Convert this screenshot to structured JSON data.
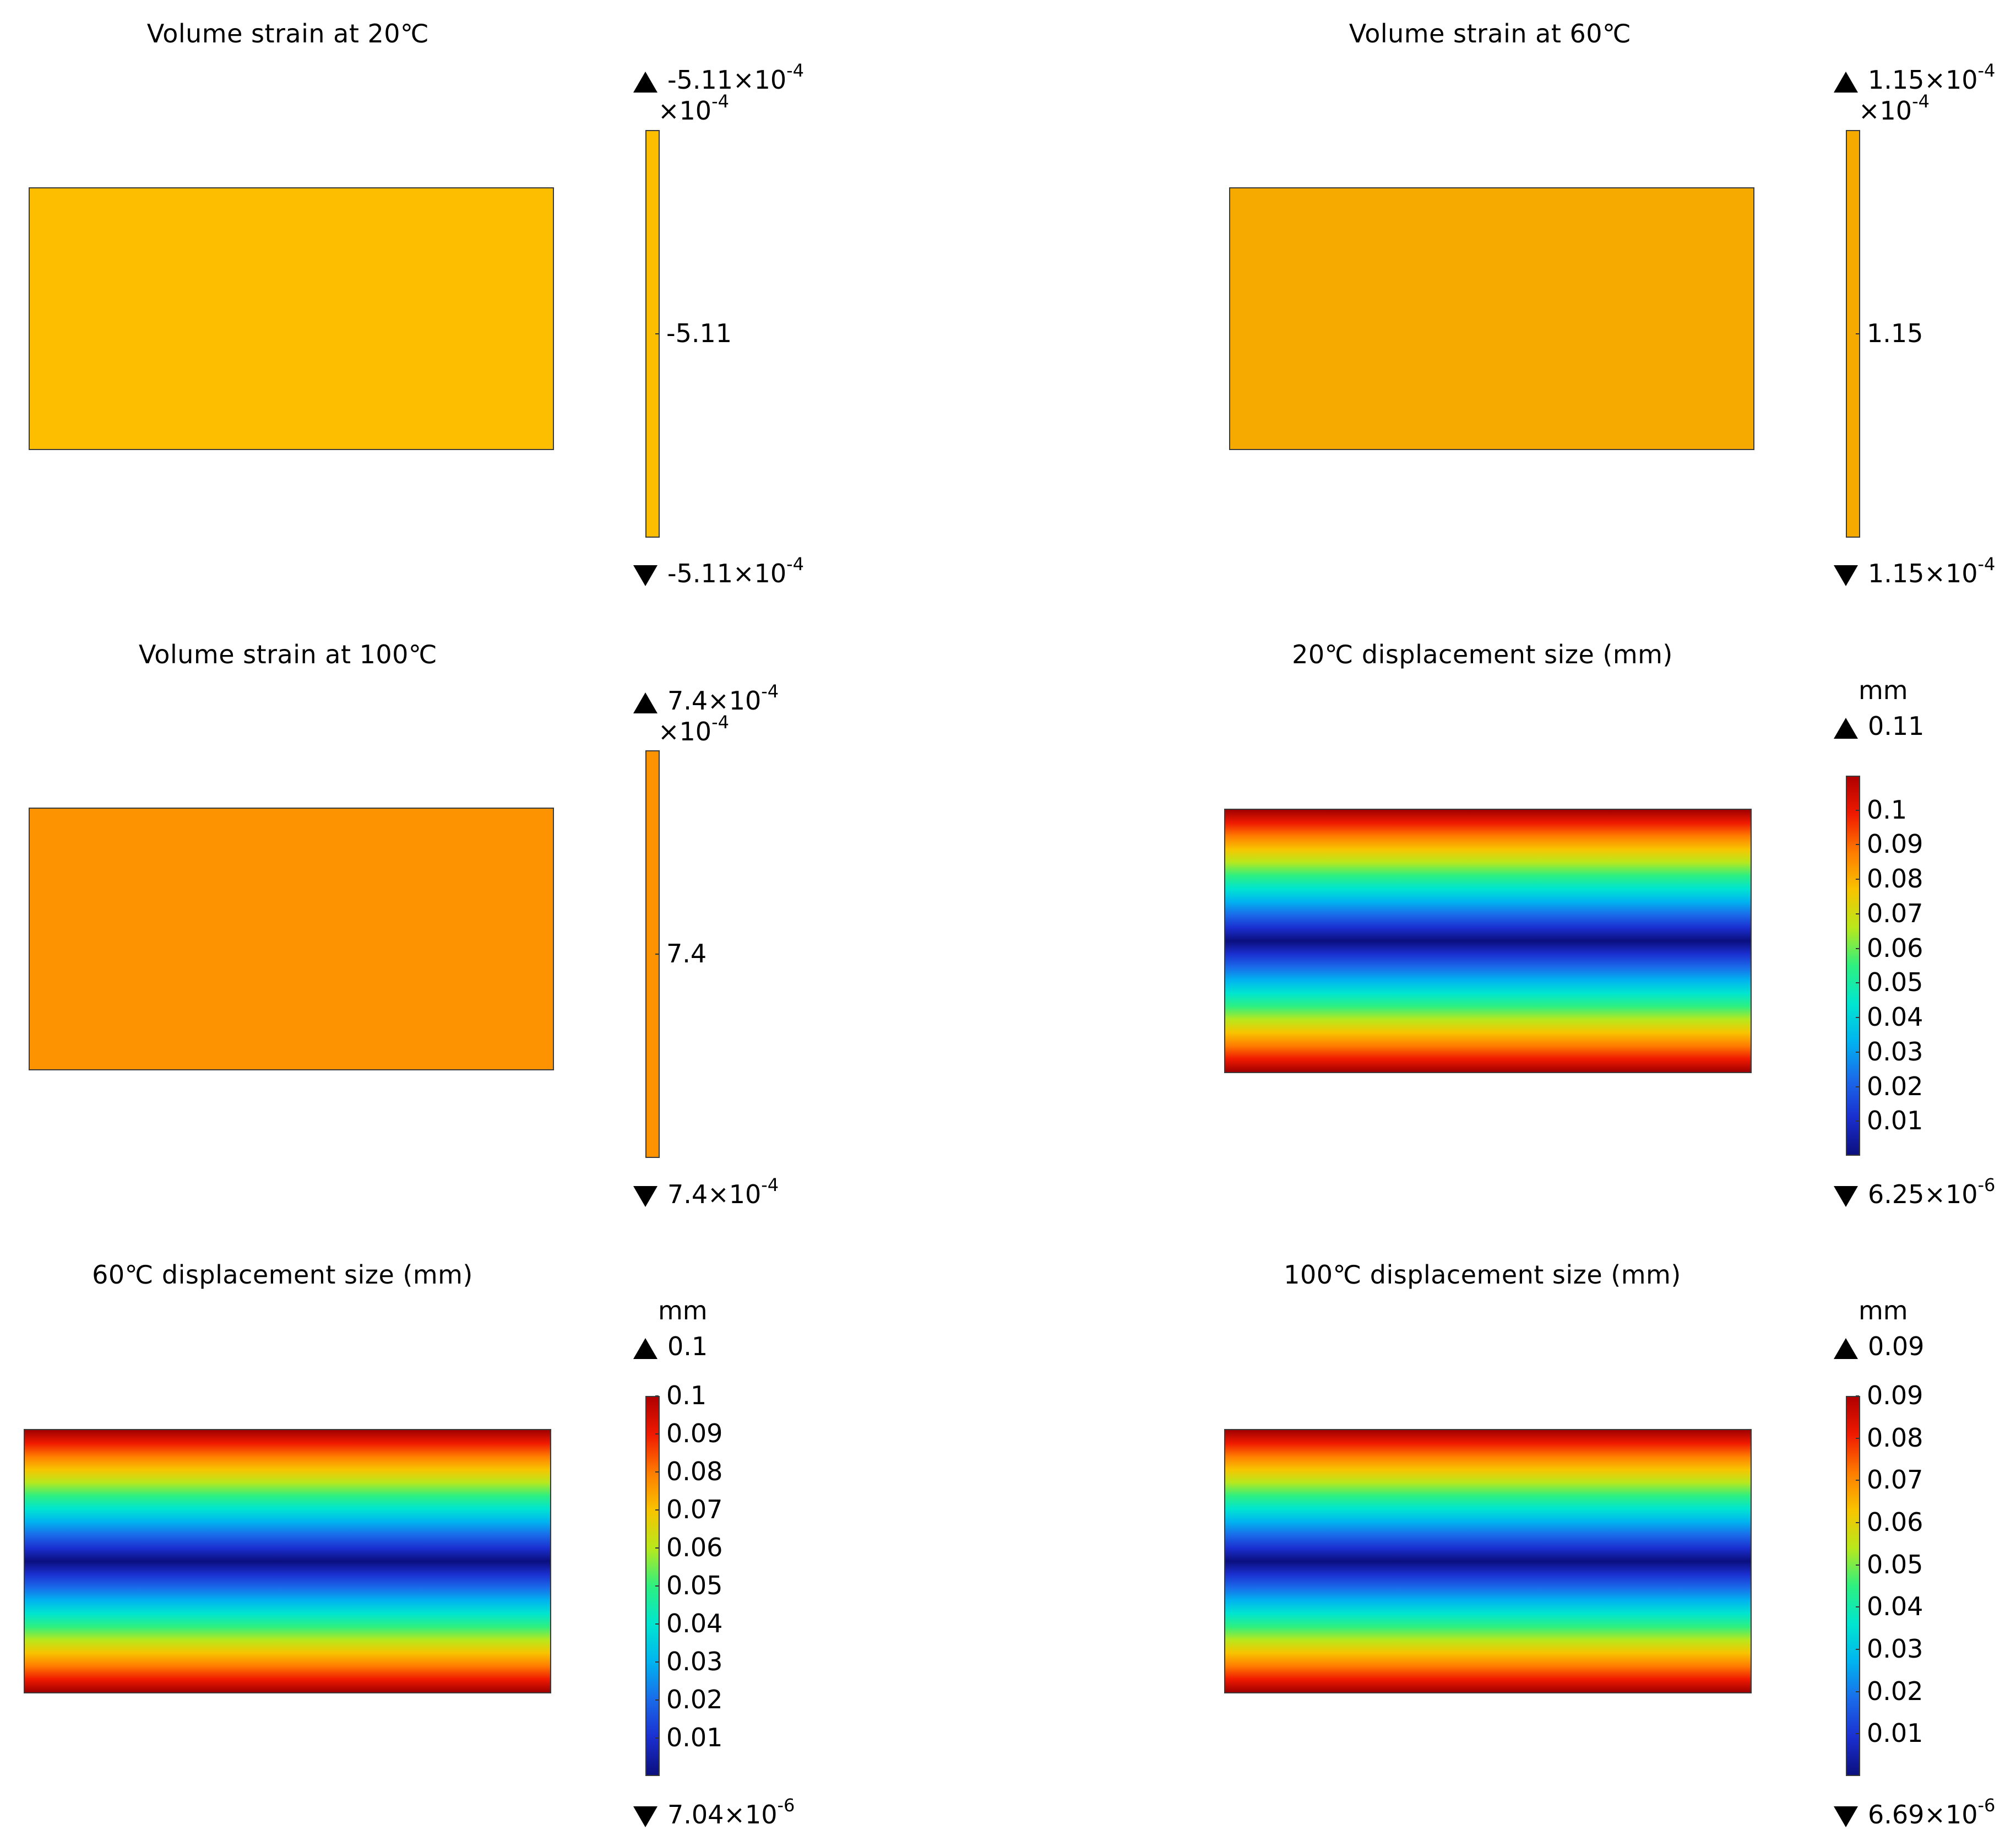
{
  "chart_data": [
    {
      "type": "heatmap",
      "title": "Volume strain at 20℃",
      "field": "uniform",
      "color": "#FDBE00",
      "max_label": {
        "mantissa": "-5.11×10",
        "exp": "-4"
      },
      "min_label": {
        "mantissa": "-5.11×10",
        "exp": "-4"
      },
      "multiplier": {
        "mantissa": "×10",
        "exp": "-4"
      },
      "ticks": [
        {
          "value": -5.11,
          "label": "-5.11"
        }
      ],
      "range": [
        -5.11,
        -5.11
      ],
      "unit": ""
    },
    {
      "type": "heatmap",
      "title": "Volume strain at 60℃",
      "field": "uniform",
      "color": "#F6AA00",
      "max_label": {
        "mantissa": "1.15×10",
        "exp": "-4"
      },
      "min_label": {
        "mantissa": "1.15×10",
        "exp": "-4"
      },
      "multiplier": {
        "mantissa": "×10",
        "exp": "-4"
      },
      "ticks": [
        {
          "value": 1.15,
          "label": "1.15"
        }
      ],
      "range": [
        1.15,
        1.15
      ],
      "unit": ""
    },
    {
      "type": "heatmap",
      "title": "Volume strain at 100℃",
      "field": "uniform",
      "color": "#FD9300",
      "max_label": {
        "mantissa": "7.4×10",
        "exp": "-4"
      },
      "min_label": {
        "mantissa": "7.4×10",
        "exp": "-4"
      },
      "multiplier": {
        "mantissa": "×10",
        "exp": "-4"
      },
      "ticks": [
        {
          "value": 7.4,
          "label": "7.4"
        }
      ],
      "range": [
        7.4,
        7.4
      ],
      "unit": ""
    },
    {
      "type": "heatmap",
      "title": "20℃ displacement size (mm)",
      "field": "displacement",
      "max_label": {
        "mantissa": "0.11",
        "exp": ""
      },
      "min_label": {
        "mantissa": "6.25×10",
        "exp": "-6"
      },
      "multiplier": null,
      "ticks": [
        {
          "value": 0.1,
          "label": "0.1"
        },
        {
          "value": 0.09,
          "label": "0.09"
        },
        {
          "value": 0.08,
          "label": "0.08"
        },
        {
          "value": 0.07,
          "label": "0.07"
        },
        {
          "value": 0.06,
          "label": "0.06"
        },
        {
          "value": 0.05,
          "label": "0.05"
        },
        {
          "value": 0.04,
          "label": "0.04"
        },
        {
          "value": 0.03,
          "label": "0.03"
        },
        {
          "value": 0.02,
          "label": "0.02"
        },
        {
          "value": 0.01,
          "label": "0.01"
        }
      ],
      "range": [
        6.25e-06,
        0.11
      ],
      "unit": "mm"
    },
    {
      "type": "heatmap",
      "title": "60℃ displacement size (mm)",
      "field": "displacement",
      "max_label": {
        "mantissa": "0.1",
        "exp": ""
      },
      "min_label": {
        "mantissa": "7.04×10",
        "exp": "-6"
      },
      "multiplier": null,
      "ticks": [
        {
          "value": 0.1,
          "label": "0.1"
        },
        {
          "value": 0.09,
          "label": "0.09"
        },
        {
          "value": 0.08,
          "label": "0.08"
        },
        {
          "value": 0.07,
          "label": "0.07"
        },
        {
          "value": 0.06,
          "label": "0.06"
        },
        {
          "value": 0.05,
          "label": "0.05"
        },
        {
          "value": 0.04,
          "label": "0.04"
        },
        {
          "value": 0.03,
          "label": "0.03"
        },
        {
          "value": 0.02,
          "label": "0.02"
        },
        {
          "value": 0.01,
          "label": "0.01"
        }
      ],
      "range": [
        7.04e-06,
        0.1
      ],
      "unit": "mm"
    },
    {
      "type": "heatmap",
      "title": "100℃ displacement size (mm)",
      "field": "displacement",
      "max_label": {
        "mantissa": "0.09",
        "exp": ""
      },
      "min_label": {
        "mantissa": "6.69×10",
        "exp": "-6"
      },
      "multiplier": null,
      "ticks": [
        {
          "value": 0.09,
          "label": "0.09"
        },
        {
          "value": 0.08,
          "label": "0.08"
        },
        {
          "value": 0.07,
          "label": "0.07"
        },
        {
          "value": 0.06,
          "label": "0.06"
        },
        {
          "value": 0.05,
          "label": "0.05"
        },
        {
          "value": 0.04,
          "label": "0.04"
        },
        {
          "value": 0.03,
          "label": "0.03"
        },
        {
          "value": 0.02,
          "label": "0.02"
        },
        {
          "value": 0.01,
          "label": "0.01"
        }
      ],
      "range": [
        6.69e-06,
        0.09
      ],
      "unit": "mm"
    }
  ]
}
